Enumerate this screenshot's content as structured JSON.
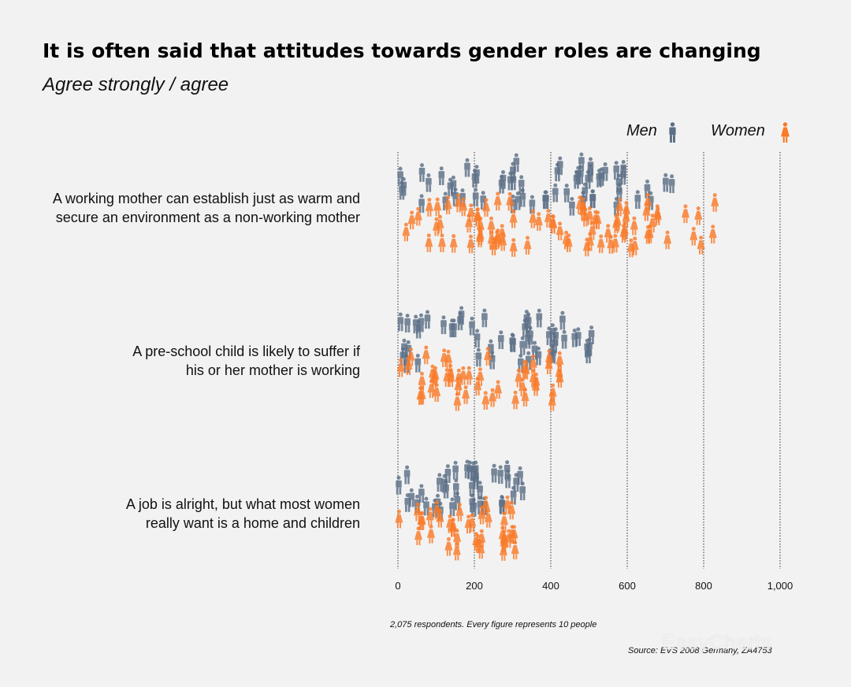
{
  "header": {
    "title": "It is often said that attitudes towards gender roles are changing",
    "subtitle": "Agree strongly / agree"
  },
  "legend": {
    "men_label": "Men",
    "women_label": "Women"
  },
  "footer": {
    "respondents_note": "2,075 respondents. Every figure represents 10 people",
    "source": "Source: EVS 2008 Germany, ZA4753"
  },
  "watermark": {
    "text": "EasyCharts"
  },
  "colors": {
    "men": "#5b6f86",
    "women": "#f97a28",
    "background": "#f2f2f2"
  },
  "chart_data": {
    "type": "scatter",
    "unit": "figure = 10 respondents",
    "xlim": [
      0,
      1000
    ],
    "ticks": [
      0,
      200,
      400,
      600,
      800,
      1000
    ],
    "tick_labels": [
      "0",
      "200",
      "400",
      "600",
      "800",
      "1,000"
    ],
    "grid": "vertical dotted lines at ticks",
    "legend_position": "top-right",
    "rows": [
      {
        "label_line1": "A working mother can establish just as warm and",
        "label_line2": "secure an environment as a non-working mother",
        "men_count": 60,
        "women_count": 80,
        "men_range": [
          0,
          720
        ],
        "women_range": [
          0,
          850
        ]
      },
      {
        "label_line1": "A pre-school child is likely to suffer if",
        "label_line2": "his or her mother is working",
        "men_count": 50,
        "women_count": 46,
        "men_range": [
          0,
          510
        ],
        "women_range": [
          0,
          440
        ]
      },
      {
        "label_line1": "A job is alright, but what most women",
        "label_line2": "really want is a home and children",
        "men_count": 40,
        "women_count": 36,
        "men_range": [
          0,
          340
        ],
        "women_range": [
          0,
          310
        ]
      }
    ]
  }
}
